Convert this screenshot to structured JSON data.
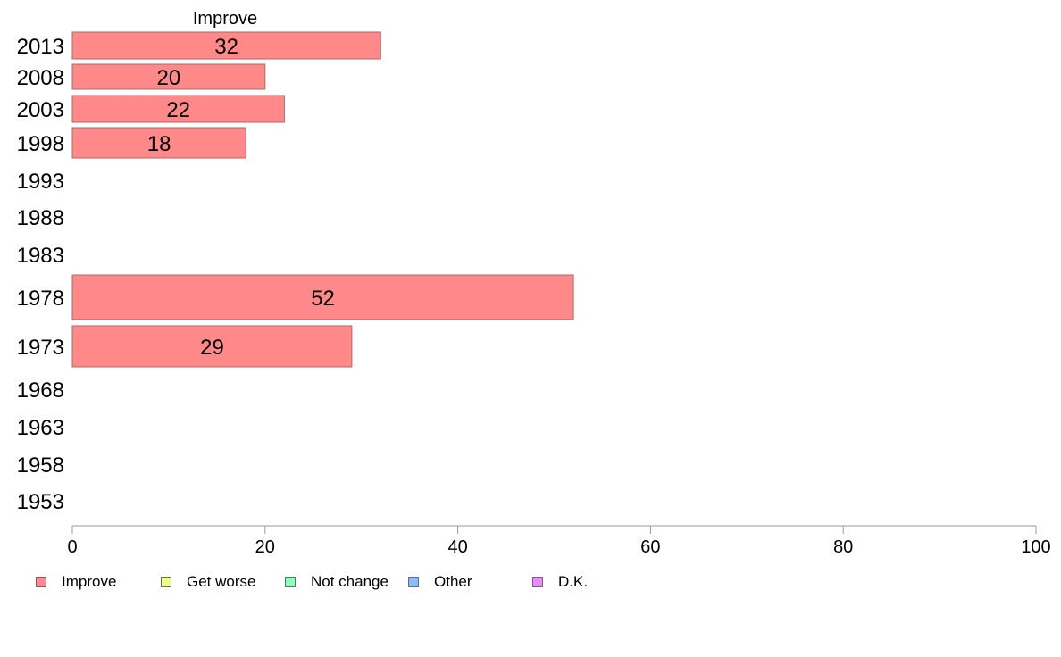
{
  "chart_data": {
    "type": "bar",
    "orientation": "horizontal",
    "categories": [
      "2013",
      "2008",
      "2003",
      "1998",
      "1993",
      "1988",
      "1983",
      "1978",
      "1973",
      "1968",
      "1963",
      "1958",
      "1953"
    ],
    "series": [
      {
        "name": "Improve",
        "color": "#ff8888",
        "values": [
          32,
          20,
          22,
          18,
          null,
          null,
          null,
          52,
          29,
          null,
          null,
          null,
          null
        ]
      }
    ],
    "series_title": "Improve",
    "xlim": [
      0,
      100
    ],
    "xticks": [
      0,
      20,
      40,
      60,
      80,
      100
    ],
    "grid": false,
    "legend_position": "bottom-left",
    "legend": [
      {
        "label": "Improve",
        "color": "#ff8888"
      },
      {
        "label": "Get worse",
        "color": "#eeff88"
      },
      {
        "label": "Not change",
        "color": "#88ffbb"
      },
      {
        "label": "Other",
        "color": "#88bbff"
      },
      {
        "label": "D.K.",
        "color": "#ee88ff"
      }
    ]
  }
}
